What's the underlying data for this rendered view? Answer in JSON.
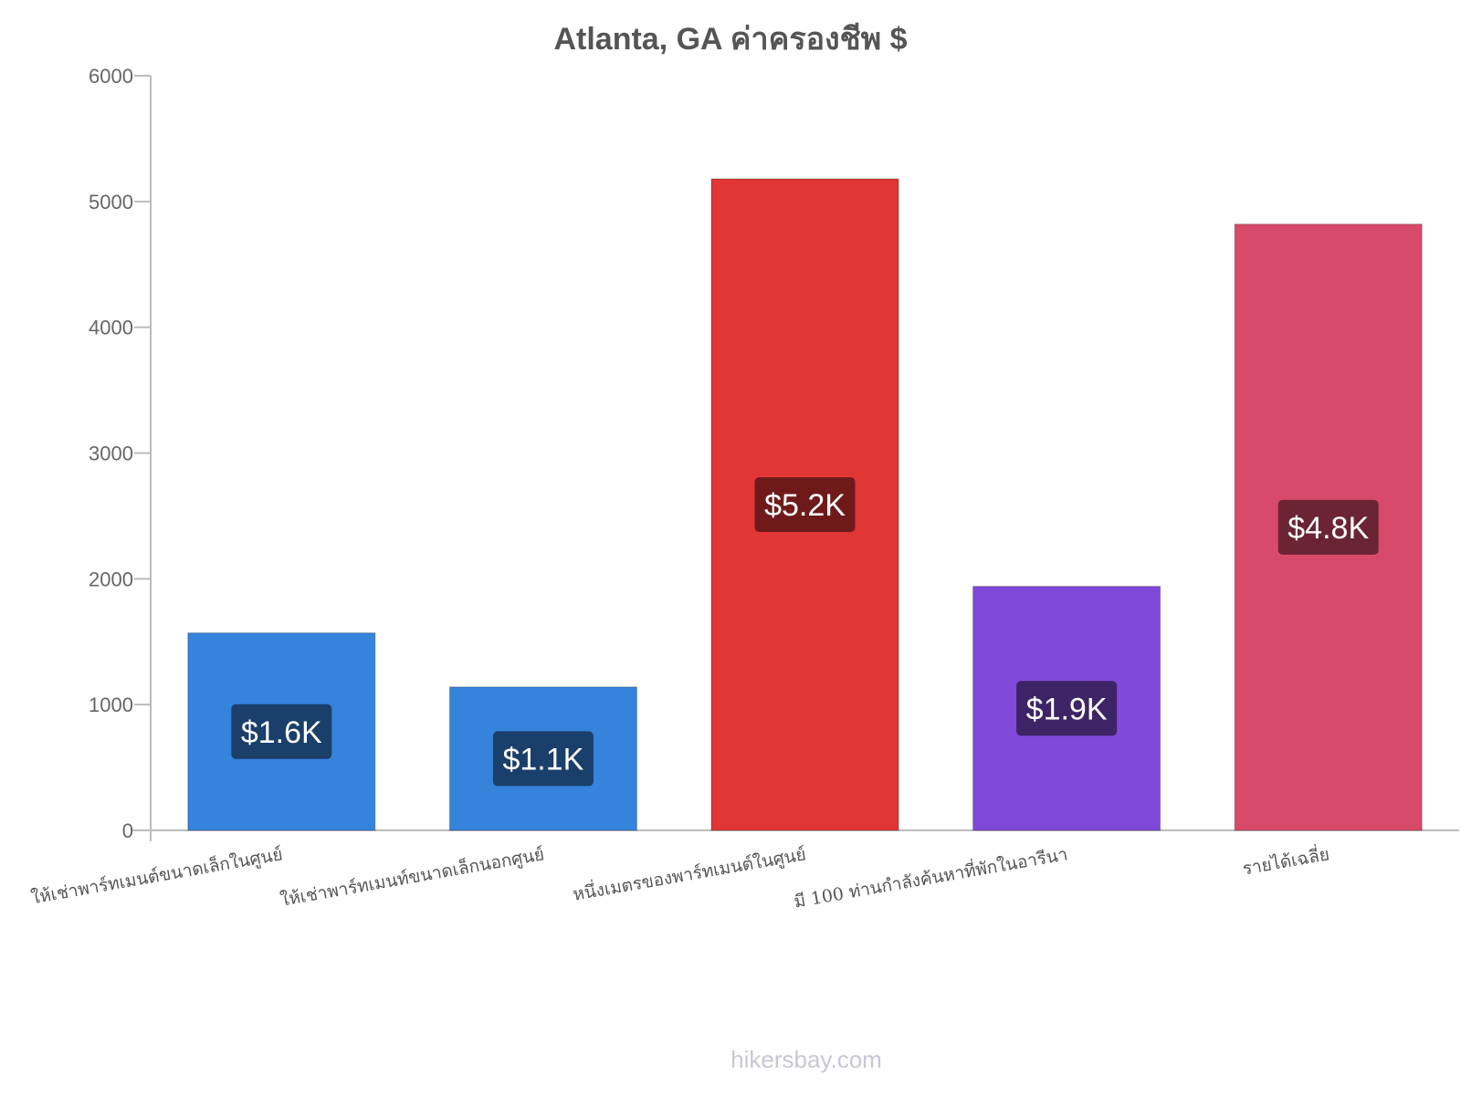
{
  "chart_data": {
    "type": "bar",
    "title": "Atlanta, GA ค่าครองชีพ $",
    "categories": [
      "ให้เช่าพาร์ทเมนต์ขนาดเล็กในศูนย์",
      "ให้เช่าพาร์ทเมนท์ขนาดเล็กนอกศูนย์",
      "หนึ่งเมตรของพาร์ทเมนต์ในศูนย์",
      "มี 100 ท่านกำลังค้นหาที่พักในอารีนา",
      "รายได้เฉลี่ย"
    ],
    "values": [
      1570,
      1140,
      5180,
      1940,
      4820
    ],
    "value_labels": [
      "$1.6K",
      "$1.1K",
      "$5.2K",
      "$1.9K",
      "$4.8K"
    ],
    "bar_colors": [
      "#3683dc",
      "#3683dc",
      "#e03636",
      "#8049d8",
      "#d84a69"
    ],
    "label_bg_colors": [
      "#1b3f6b",
      "#1b3f6b",
      "#6e1a1a",
      "#3d2466",
      "#6b2434"
    ],
    "yticks": [
      "0",
      "1000",
      "2000",
      "3000",
      "4000",
      "5000",
      "6000"
    ],
    "ylim": [
      0,
      6000
    ],
    "xlabel": "",
    "ylabel": "",
    "grid": false
  },
  "watermark": "hikersbay.com"
}
